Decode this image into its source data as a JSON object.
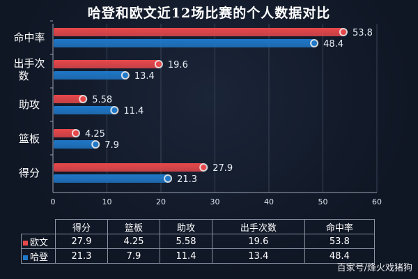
{
  "watermark": "百家号/烽火戏猪狗",
  "chart_data": {
    "type": "bar",
    "orientation": "horizontal",
    "title": "哈登和欧文近12场比赛的个人数据对比",
    "categories": [
      "命中率",
      "出手次数",
      "助攻",
      "篮板",
      "得分"
    ],
    "category_lines": [
      [
        "命中率"
      ],
      [
        "出手次",
        "数"
      ],
      [
        "助攻"
      ],
      [
        "篮板"
      ],
      [
        "得分"
      ]
    ],
    "series": [
      {
        "name": "欧文",
        "color": "#e8484b",
        "values": [
          53.8,
          19.6,
          5.58,
          4.25,
          27.9
        ],
        "labels": [
          "53.8",
          "19.6",
          "5.58",
          "4.25",
          "27.9"
        ]
      },
      {
        "name": "哈登",
        "color": "#1f78c8",
        "values": [
          48.4,
          13.4,
          11.4,
          7.9,
          21.3
        ],
        "labels": [
          "48.4",
          "13.4",
          "11.4",
          "7.9",
          "21.3"
        ]
      }
    ],
    "xlim": [
      0,
      60
    ],
    "xticks": [
      "0",
      "10",
      "20",
      "30",
      "40",
      "50",
      "60"
    ],
    "grid": true,
    "table": {
      "columns": [
        "得分",
        "篮板",
        "助攻",
        "出手次数",
        "命中率"
      ],
      "rows": [
        {
          "name": "欧文",
          "values": [
            "27.9",
            "4.25",
            "5.58",
            "19.6",
            "53.8"
          ]
        },
        {
          "name": "哈登",
          "values": [
            "21.3",
            "7.9",
            "11.4",
            "13.4",
            "48.4"
          ]
        }
      ]
    }
  }
}
